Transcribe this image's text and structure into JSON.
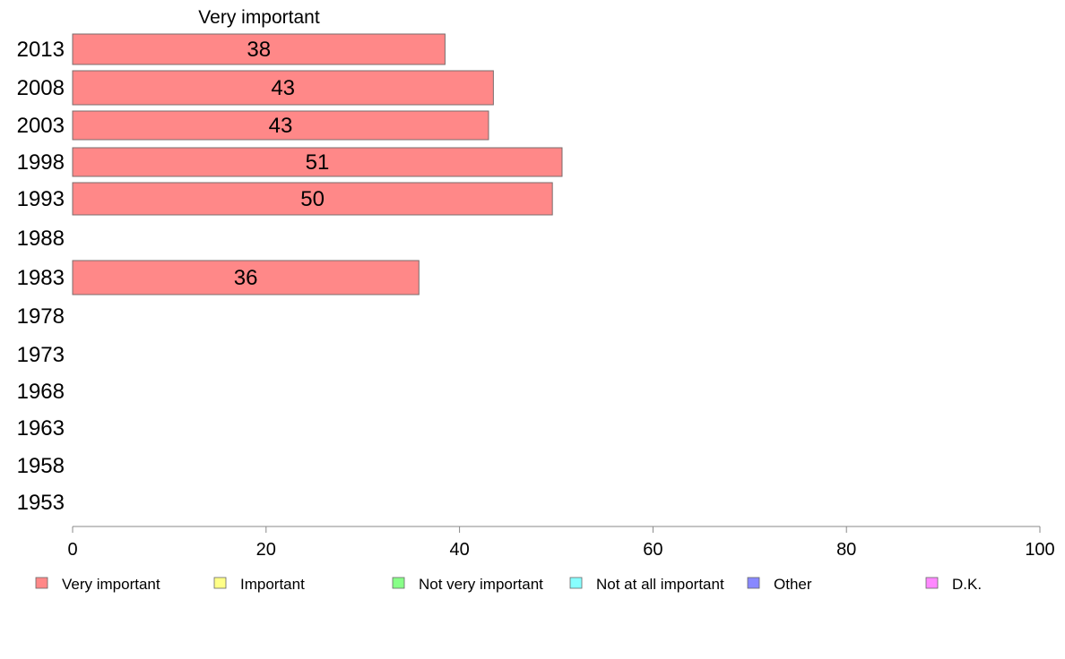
{
  "chart_data": {
    "type": "bar",
    "orientation": "horizontal",
    "title": "Very important",
    "categories": [
      "2013",
      "2008",
      "2003",
      "1998",
      "1993",
      "1988",
      "1983",
      "1978",
      "1973",
      "1968",
      "1963",
      "1958",
      "1953"
    ],
    "series": [
      {
        "name": "Very important",
        "color": "#ff8888",
        "values": [
          38.5,
          43.5,
          43,
          50.6,
          49.6,
          null,
          35.8,
          null,
          null,
          null,
          null,
          null,
          null
        ],
        "labels": [
          "38",
          "43",
          "43",
          "51",
          "50",
          "",
          "36",
          "",
          "",
          "",
          "",
          "",
          ""
        ]
      }
    ],
    "xlim": [
      0,
      100
    ],
    "xticks": [
      0,
      20,
      40,
      60,
      80,
      100
    ],
    "grid": false,
    "legend": {
      "placement": "bottom",
      "items": [
        {
          "label": "Very important",
          "color": "#ff8888"
        },
        {
          "label": "Important",
          "color": "#ffff88"
        },
        {
          "label": "Not very important",
          "color": "#88ff88"
        },
        {
          "label": "Not at all important",
          "color": "#88ffff"
        },
        {
          "label": "Other",
          "color": "#8888ff"
        },
        {
          "label": "D.K.",
          "color": "#ff88ff"
        }
      ]
    }
  }
}
